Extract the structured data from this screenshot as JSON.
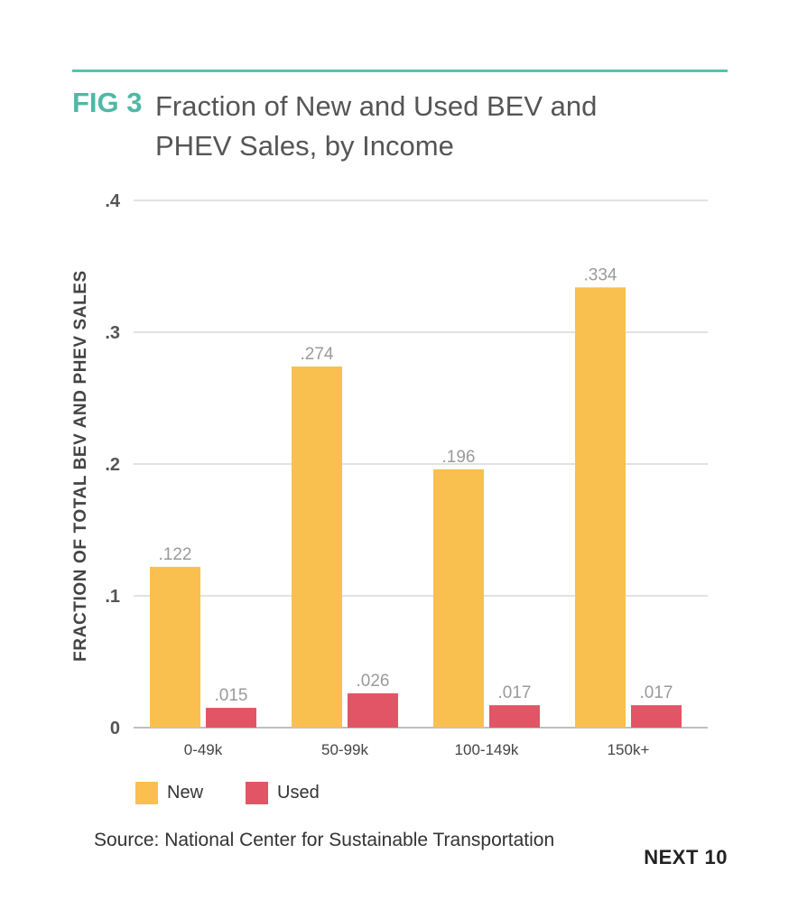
{
  "header": {
    "fig_label": "FIG 3",
    "title_line1": "Fraction of New and Used BEV and",
    "title_line2": "PHEV Sales, by Income"
  },
  "chart_data": {
    "type": "bar",
    "title": "Fraction of New and Used BEV and PHEV Sales, by Income",
    "ylabel": "FRACTION OF TOTAL BEV AND PHEV SALES",
    "xlabel": "",
    "categories": [
      "0-49k",
      "50-99k",
      "100-149k",
      "150k+"
    ],
    "yticks": [
      {
        "value": 0,
        "label": "0"
      },
      {
        "value": 0.1,
        "label": ".1"
      },
      {
        "value": 0.2,
        "label": ".2"
      },
      {
        "value": 0.3,
        "label": ".3"
      },
      {
        "value": 0.4,
        "label": ".4"
      }
    ],
    "ylim": [
      0,
      0.4
    ],
    "grid": true,
    "legend_position": "bottom-left",
    "series": [
      {
        "name": "New",
        "color": "#f9c04f",
        "values": [
          0.122,
          0.274,
          0.196,
          0.334
        ],
        "labels": [
          ".122",
          ".274",
          ".196",
          ".334"
        ]
      },
      {
        "name": "Used",
        "color": "#e25566",
        "values": [
          0.015,
          0.026,
          0.017,
          0.017
        ],
        "labels": [
          ".015",
          ".026",
          ".017",
          ".017"
        ]
      }
    ]
  },
  "legend": {
    "new_label": "New",
    "used_label": "Used"
  },
  "footer": {
    "source": "Source: National Center for Sustainable Transportation",
    "brand": "NEXT 10"
  }
}
